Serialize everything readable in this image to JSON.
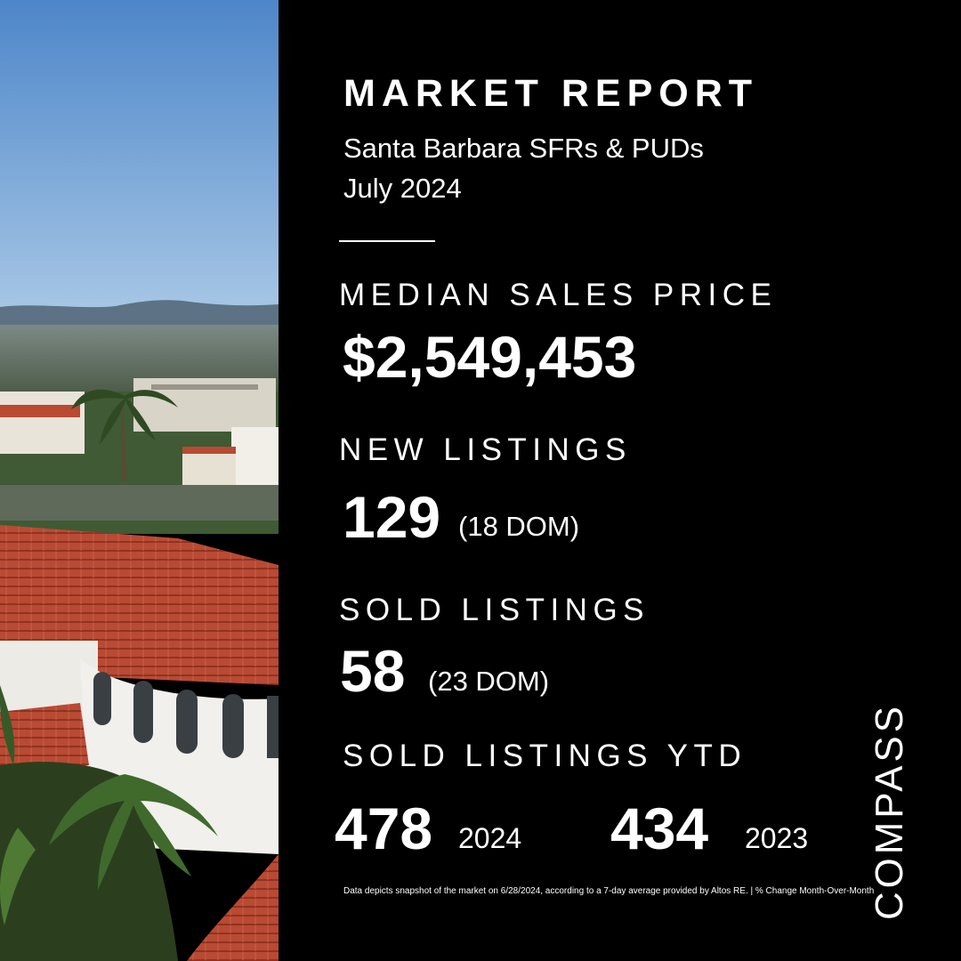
{
  "header": {
    "title": "MARKET REPORT",
    "subtitle": "Santa Barbara SFRs & PUDs",
    "period": "July 2024"
  },
  "median_sales_price": {
    "label": "MEDIAN SALES PRICE",
    "value": "$2,549,453"
  },
  "new_listings": {
    "label": "NEW LISTINGS",
    "value": "129",
    "dom": "(18 DOM)"
  },
  "sold_listings": {
    "label": "SOLD LISTINGS",
    "value": "58",
    "dom": "(23 DOM)"
  },
  "sold_listings_ytd": {
    "label": "SOLD LISTINGS YTD",
    "current_value": "478",
    "current_year": "2024",
    "prior_value": "434",
    "prior_year": "2023"
  },
  "footnote": "Data depicts snapshot of the market on 6/28/2024, according to a 7-day average provided by Altos RE. | % Change Month-Over-Month",
  "brand": {
    "name": "COMPASS"
  },
  "photo": {
    "subject": "Santa Barbara rooftops view"
  },
  "colors": {
    "background": "#000000",
    "text": "#ffffff",
    "roof": "#b94a33",
    "sky": "#6fa3d8"
  }
}
